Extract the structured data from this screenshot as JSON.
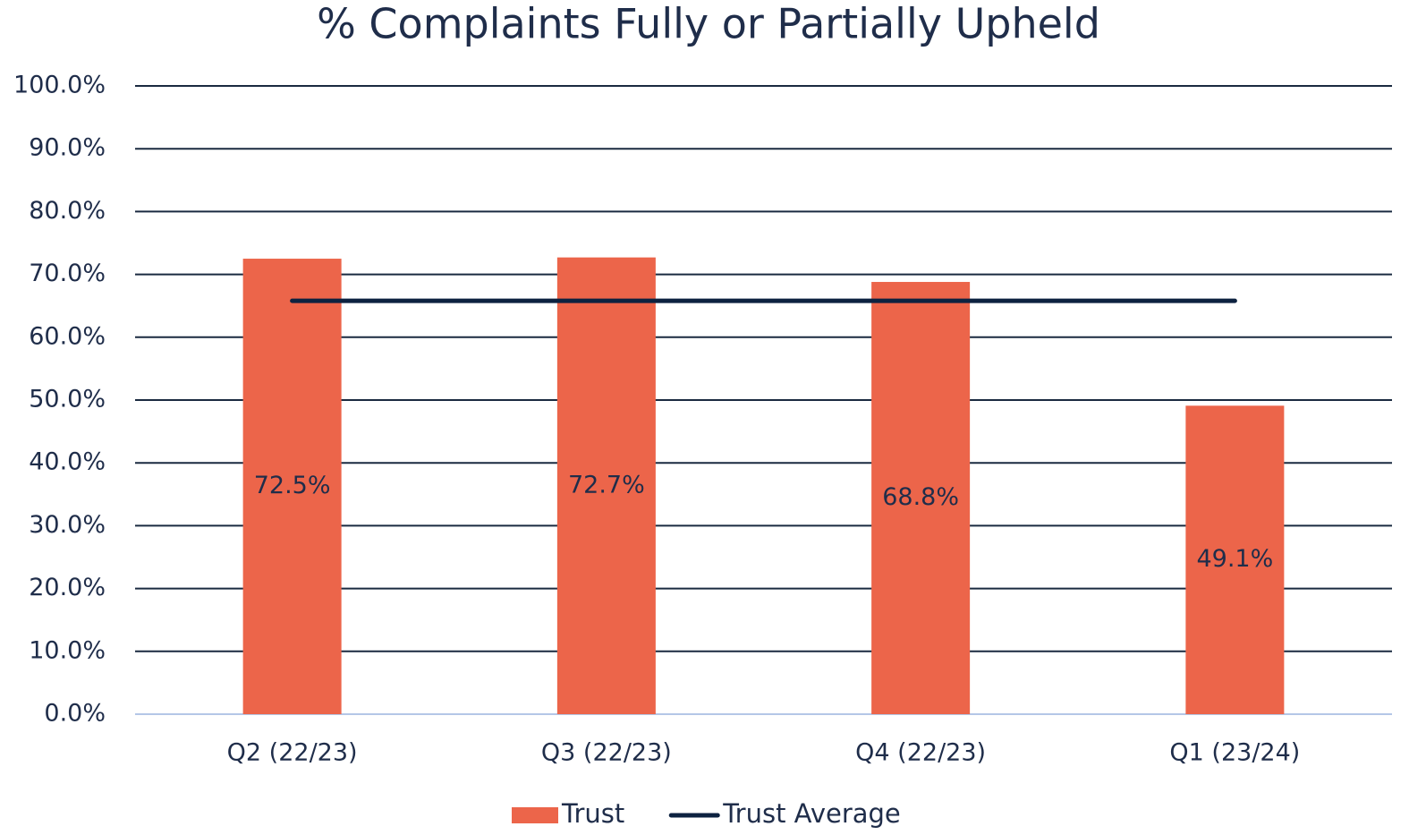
{
  "chart_data": {
    "type": "bar",
    "title": "% Complaints Fully or Partially Upheld",
    "categories": [
      "Q2 (22/23)",
      "Q3 (22/23)",
      "Q4 (22/23)",
      "Q1 (23/24)"
    ],
    "series": [
      {
        "name": "Trust",
        "type": "bar",
        "color": "#ec654a",
        "values": [
          72.5,
          72.7,
          68.8,
          49.1
        ],
        "value_labels": [
          "72.5%",
          "72.7%",
          "68.8%",
          "49.1%"
        ]
      },
      {
        "name": "Trust Average",
        "type": "line",
        "color": "#0d2240",
        "values": [
          65.8,
          65.8,
          65.8,
          65.8
        ]
      }
    ],
    "ylim": [
      0,
      100
    ],
    "yticks": [
      {
        "value": 0,
        "label": "0.0%"
      },
      {
        "value": 10,
        "label": "10.0%"
      },
      {
        "value": 20,
        "label": "20.0%"
      },
      {
        "value": 30,
        "label": "30.0%"
      },
      {
        "value": 40,
        "label": "40.0%"
      },
      {
        "value": 50,
        "label": "50.0%"
      },
      {
        "value": 60,
        "label": "60.0%"
      },
      {
        "value": 70,
        "label": "70.0%"
      },
      {
        "value": 80,
        "label": "80.0%"
      },
      {
        "value": 90,
        "label": "90.0%"
      },
      {
        "value": 100,
        "label": "100.0%"
      }
    ],
    "grid": true
  }
}
